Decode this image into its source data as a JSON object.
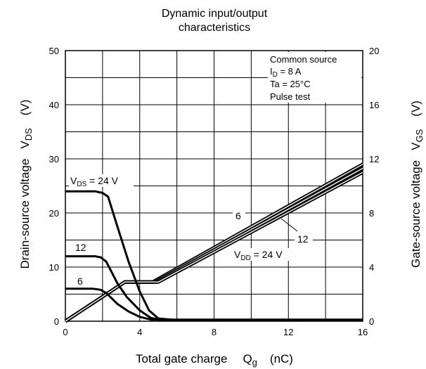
{
  "chart_data": {
    "type": "line",
    "title_lines": [
      "Dynamic input/output",
      "characteristics"
    ],
    "xlabel": {
      "main": "Total gate charge",
      "sym": "Q",
      "sub": "g",
      "unit": "(nC)"
    },
    "ylabel_left": {
      "main": "Drain-source voltage",
      "sym": "V",
      "sub": "DS",
      "unit": "(V)"
    },
    "ylabel_right": {
      "main": "Gate-source voltage",
      "sym": "V",
      "sub": "GS",
      "unit": "(V)"
    },
    "xlim": [
      0,
      16
    ],
    "ylim_left": [
      0,
      50
    ],
    "ylim_right": [
      0,
      20
    ],
    "x_ticks": [
      "0",
      "4",
      "8",
      "12",
      "16"
    ],
    "y_left_ticks": [
      "0",
      "10",
      "20",
      "30",
      "40",
      "50"
    ],
    "y_right_ticks": [
      "0",
      "4",
      "8",
      "12",
      "16",
      "20"
    ],
    "grid": true,
    "conditions": {
      "line1": "Common source",
      "line2_sym": "I",
      "line2_sub": "D",
      "line2_val": " = 8 A",
      "line3": "Ta = 25°C",
      "line4": "Pulse test"
    },
    "vds_series": [
      {
        "name": "VDS = 24 V",
        "axis": "left",
        "x": [
          0,
          1.6,
          2.0,
          2.3,
          2.8,
          3.4,
          4.0,
          4.5,
          5.0,
          6.0,
          16
        ],
        "y": [
          24,
          24,
          23.7,
          23.0,
          17.5,
          11.0,
          5.5,
          2.0,
          0.5,
          0.2,
          0.2
        ]
      },
      {
        "name": "12",
        "axis": "left",
        "x": [
          0,
          1.6,
          1.9,
          2.2,
          2.8,
          3.3,
          4.0,
          4.6,
          5.2,
          16
        ],
        "y": [
          12,
          12,
          11.8,
          11.0,
          7.0,
          4.5,
          2.0,
          0.6,
          0.2,
          0.2
        ]
      },
      {
        "name": "6",
        "axis": "left",
        "x": [
          0,
          1.5,
          1.9,
          2.2,
          2.8,
          3.4,
          4.0,
          4.6,
          16
        ],
        "y": [
          6,
          6,
          5.8,
          5.2,
          3.2,
          1.8,
          0.8,
          0.3,
          0.3
        ]
      }
    ],
    "vgs_series": [
      {
        "name": "6",
        "axis": "right",
        "x": [
          0,
          3.2,
          4.7,
          16
        ],
        "y": [
          0,
          2.9,
          2.9,
          11.6
        ]
      },
      {
        "name": "12",
        "axis": "right",
        "x": [
          0,
          3.2,
          4.85,
          16
        ],
        "y": [
          0,
          2.9,
          2.9,
          11.3
        ]
      },
      {
        "name": "VDD = 24 V",
        "axis": "right",
        "x": [
          0,
          3.2,
          5.0,
          16
        ],
        "y": [
          0,
          2.9,
          2.9,
          11.0
        ]
      }
    ],
    "annotations": {
      "vds24": {
        "sym": "V",
        "sub": "DS",
        "val": " = 24 V"
      },
      "vds12": "12",
      "vds6": "6",
      "vgs6": "6",
      "vgs12": "12",
      "vdd": {
        "sym": "V",
        "sub": "DD",
        "val": " = 24 V"
      }
    }
  }
}
